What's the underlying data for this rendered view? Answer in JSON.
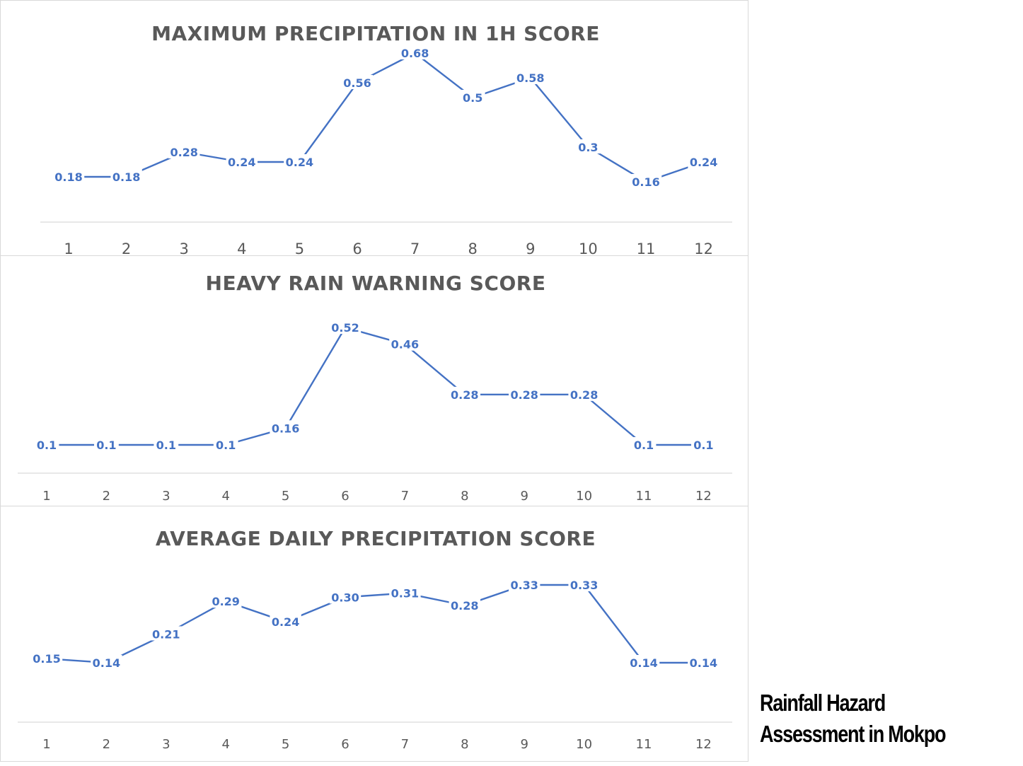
{
  "caption": {
    "line1": "Rainfall Hazard",
    "line2": "Assessment in Mokpo"
  },
  "colors": {
    "series": "#4472c4",
    "title": "#595959",
    "axis": "#d9d9d9",
    "border": "#d9d9d9"
  },
  "chart_data": [
    {
      "type": "line",
      "title": "MAXIMUM PRECIPITATION IN 1H SCORE",
      "categories": [
        "1",
        "2",
        "3",
        "4",
        "5",
        "6",
        "7",
        "8",
        "9",
        "10",
        "11",
        "12"
      ],
      "values": [
        0.18,
        0.18,
        0.28,
        0.24,
        0.24,
        0.56,
        0.68,
        0.5,
        0.58,
        0.3,
        0.16,
        0.24
      ],
      "labels": [
        "0.18",
        "0.18",
        "0.28",
        "0.24",
        "0.24",
        "0.56",
        "0.68",
        "0.5",
        "0.58",
        "0.3",
        "0.16",
        "0.24"
      ],
      "xlabel": "",
      "ylabel": "",
      "ylim": [
        0,
        0.7
      ],
      "grid": false,
      "legend": "none"
    },
    {
      "type": "line",
      "title": "HEAVY RAIN WARNING SCORE",
      "categories": [
        "1",
        "2",
        "3",
        "4",
        "5",
        "6",
        "7",
        "8",
        "9",
        "10",
        "11",
        "12"
      ],
      "values": [
        0.1,
        0.1,
        0.1,
        0.1,
        0.16,
        0.52,
        0.46,
        0.28,
        0.28,
        0.28,
        0.1,
        0.1
      ],
      "labels": [
        "0.1",
        "0.1",
        "0.1",
        "0.1",
        "0.16",
        "0.52",
        "0.46",
        "0.28",
        "0.28",
        "0.28",
        "0.1",
        "0.1"
      ],
      "xlabel": "",
      "ylabel": "",
      "ylim": [
        0,
        0.55
      ],
      "grid": false,
      "legend": "none"
    },
    {
      "type": "line",
      "title": "AVERAGE DAILY PRECIPITATION SCORE",
      "categories": [
        "1",
        "2",
        "3",
        "4",
        "5",
        "6",
        "7",
        "8",
        "9",
        "10",
        "11",
        "12"
      ],
      "values": [
        0.15,
        0.14,
        0.21,
        0.29,
        0.24,
        0.3,
        0.31,
        0.28,
        0.33,
        0.33,
        0.14,
        0.14
      ],
      "labels": [
        "0.15",
        "0.14",
        "0.21",
        "0.29",
        "0.24",
        "0.30",
        "0.31",
        "0.28",
        "0.33",
        "0.33",
        "0.14",
        "0.14"
      ],
      "xlabel": "",
      "ylabel": "",
      "ylim": [
        0,
        0.35
      ],
      "grid": false,
      "legend": "none"
    }
  ]
}
